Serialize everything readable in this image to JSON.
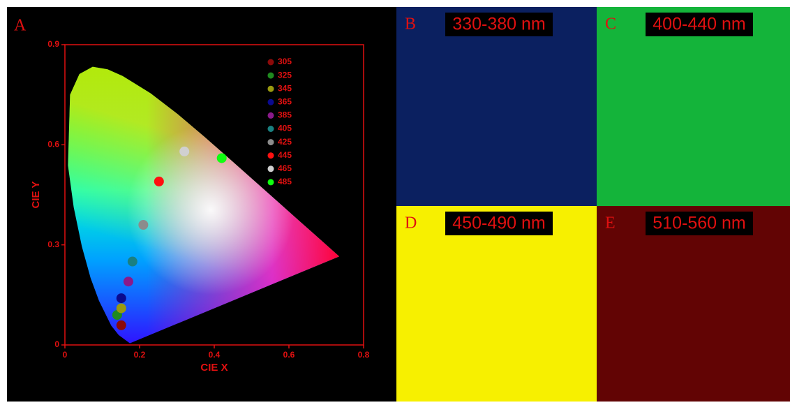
{
  "chart_data": {
    "type": "scatter",
    "label": "A",
    "x_label": "CIE X",
    "y_label": "CIE Y",
    "xlim": [
      0,
      0.8
    ],
    "ylim": [
      0,
      0.9
    ],
    "xticks": [
      0,
      0.2,
      0.4,
      0.6,
      0.8
    ],
    "yticks": [
      0,
      0.3,
      0.6,
      0.9
    ],
    "series": [
      {
        "name": "305",
        "color": "#8b0a0a",
        "x": [
          0.151
        ],
        "values": [
          0.059
        ]
      },
      {
        "name": "325",
        "color": "#1f8a1f",
        "x": [
          0.14
        ],
        "values": [
          0.09
        ]
      },
      {
        "name": "345",
        "color": "#9a9a10",
        "x": [
          0.151
        ],
        "values": [
          0.11
        ]
      },
      {
        "name": "365",
        "color": "#0a0a8f",
        "x": [
          0.151
        ],
        "values": [
          0.14
        ]
      },
      {
        "name": "385",
        "color": "#8a1a8a",
        "x": [
          0.17
        ],
        "values": [
          0.19
        ]
      },
      {
        "name": "405",
        "color": "#1a8080",
        "x": [
          0.181
        ],
        "values": [
          0.25
        ]
      },
      {
        "name": "425",
        "color": "#8c8c8c",
        "x": [
          0.21
        ],
        "values": [
          0.36
        ]
      },
      {
        "name": "445",
        "color": "#ff1010",
        "x": [
          0.252
        ],
        "values": [
          0.49
        ]
      },
      {
        "name": "465",
        "color": "#d0d0d0",
        "x": [
          0.32
        ],
        "values": [
          0.58
        ]
      },
      {
        "name": "485",
        "color": "#10ff10",
        "x": [
          0.42
        ],
        "values": [
          0.56
        ]
      }
    ]
  },
  "panels": [
    {
      "letter": "B",
      "label": "330-380 nm",
      "color": "#0b2060"
    },
    {
      "letter": "C",
      "label": "400-440 nm",
      "color": "#14b43a"
    },
    {
      "letter": "D",
      "label": "450-490 nm",
      "color": "#f7f000"
    },
    {
      "letter": "E",
      "label": "510-560 nm",
      "color": "#620404"
    }
  ]
}
